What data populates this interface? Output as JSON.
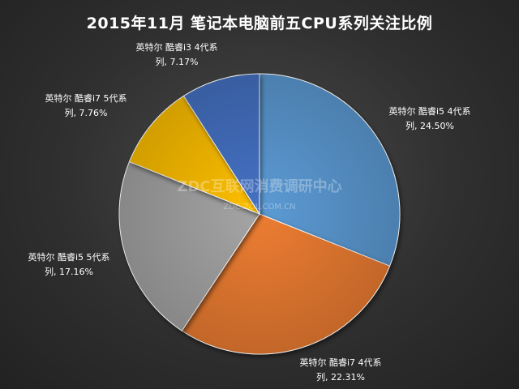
{
  "title": "2015年11月  笔记本电脑前五CPU系列关注比例",
  "watermark": {
    "line1": "ZDC互联网消费调研中心",
    "line2": "ZDC.ZOL.COM.CN"
  },
  "chart_data": {
    "type": "pie",
    "title": "2015年11月  笔记本电脑前五CPU系列关注比例",
    "slices": [
      {
        "label_line1": "英特尔 酷睿i5 4代系",
        "label_line2": "列, 24.50%",
        "value": 24.5,
        "color": "#5b9bd5"
      },
      {
        "label_line1": "英特尔 酷睿i7 4代系",
        "label_line2": "列, 22.31%",
        "value": 22.31,
        "color": "#ed7d31"
      },
      {
        "label_line1": "英特尔 酷睿i5 5代系",
        "label_line2": "列, 17.16%",
        "value": 17.16,
        "color": "#a5a5a5"
      },
      {
        "label_line1": "英特尔 酷睿i7 5代系",
        "label_line2": "列, 7.76%",
        "value": 7.76,
        "color": "#ffc000"
      },
      {
        "label_line1": "英特尔 酷睿i3 4代系",
        "label_line2": "列, 7.17%",
        "value": 7.17,
        "color": "#4472c4"
      }
    ]
  }
}
